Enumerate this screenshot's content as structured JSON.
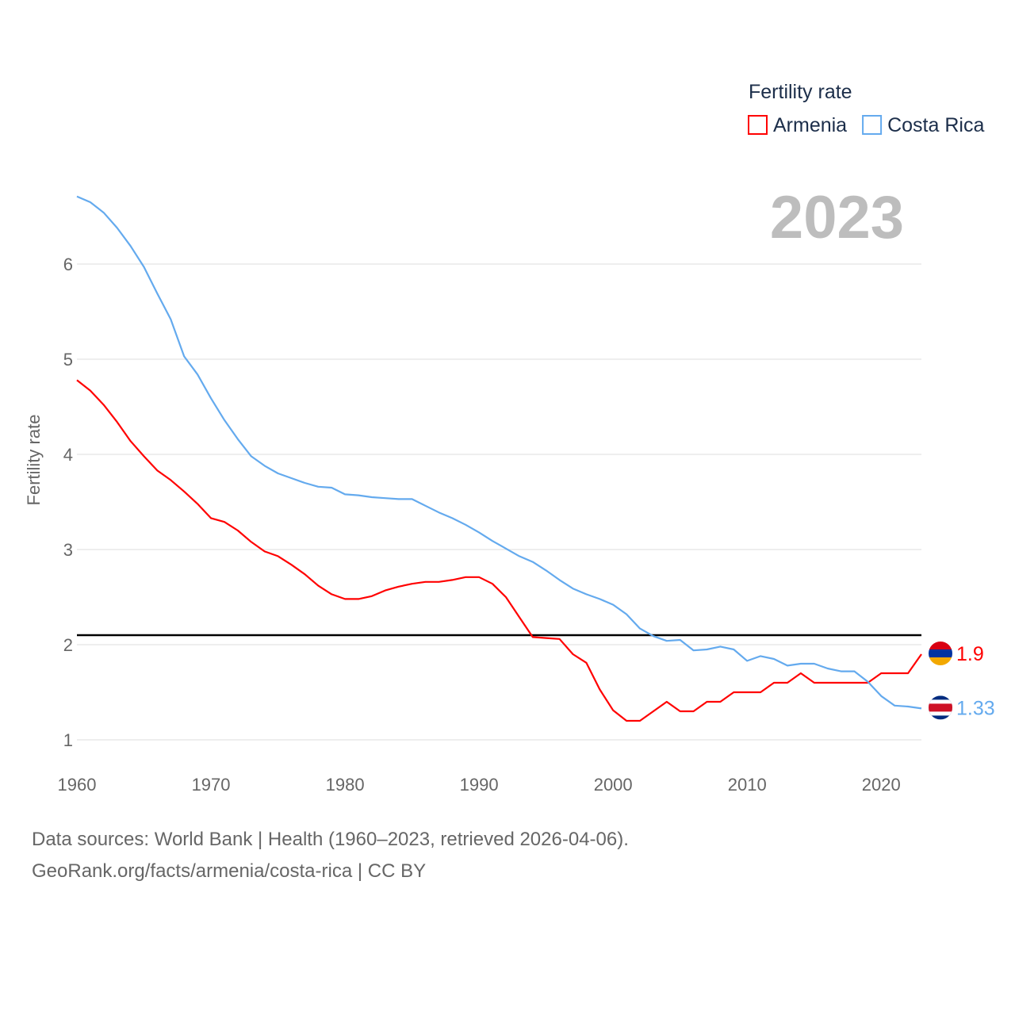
{
  "chart_data": {
    "type": "line",
    "title": "Fertility rate",
    "ylabel": "Fertility rate",
    "xlabel": "",
    "year_label": "2023",
    "xlim": [
      1960,
      2023
    ],
    "ylim": [
      0.8,
      6.8
    ],
    "x_ticks": [
      1960,
      1970,
      1980,
      1990,
      2000,
      2010,
      2020
    ],
    "y_ticks": [
      1,
      2,
      3,
      4,
      5,
      6
    ],
    "grid": true,
    "legend_position": "top-right",
    "reference_line": 2.1,
    "x": [
      1960,
      1961,
      1962,
      1963,
      1964,
      1965,
      1966,
      1967,
      1968,
      1969,
      1970,
      1971,
      1972,
      1973,
      1974,
      1975,
      1976,
      1977,
      1978,
      1979,
      1980,
      1981,
      1982,
      1983,
      1984,
      1985,
      1986,
      1987,
      1988,
      1989,
      1990,
      1991,
      1992,
      1993,
      1994,
      1995,
      1996,
      1997,
      1998,
      1999,
      2000,
      2001,
      2002,
      2003,
      2004,
      2005,
      2006,
      2007,
      2008,
      2009,
      2010,
      2011,
      2012,
      2013,
      2014,
      2015,
      2016,
      2017,
      2018,
      2019,
      2020,
      2021,
      2022,
      2023
    ],
    "series": [
      {
        "name": "Armenia",
        "color": "#ff0000",
        "end_label": "1.9",
        "flag": "armenia",
        "values": [
          4.78,
          4.67,
          4.52,
          4.34,
          4.14,
          3.98,
          3.83,
          3.73,
          3.61,
          3.48,
          3.33,
          3.29,
          3.2,
          3.08,
          2.98,
          2.93,
          2.84,
          2.74,
          2.62,
          2.53,
          2.48,
          2.48,
          2.51,
          2.57,
          2.61,
          2.64,
          2.66,
          2.66,
          2.68,
          2.71,
          2.71,
          2.64,
          2.5,
          2.29,
          2.08,
          2.07,
          2.06,
          1.9,
          1.81,
          1.53,
          1.31,
          1.2,
          1.2,
          1.3,
          1.4,
          1.3,
          1.3,
          1.4,
          1.4,
          1.5,
          1.5,
          1.5,
          1.6,
          1.6,
          1.7,
          1.6,
          1.6,
          1.6,
          1.6,
          1.6,
          1.7,
          1.7,
          1.7,
          1.9
        ]
      },
      {
        "name": "Costa Rica",
        "color": "#64aaee",
        "end_label": "1.33",
        "flag": "costa-rica",
        "values": [
          6.71,
          6.65,
          6.54,
          6.38,
          6.19,
          5.97,
          5.69,
          5.42,
          5.03,
          4.84,
          4.59,
          4.36,
          4.16,
          3.98,
          3.88,
          3.8,
          3.75,
          3.7,
          3.66,
          3.65,
          3.58,
          3.57,
          3.55,
          3.54,
          3.53,
          3.53,
          3.46,
          3.39,
          3.33,
          3.26,
          3.18,
          3.09,
          3.01,
          2.93,
          2.87,
          2.78,
          2.68,
          2.59,
          2.53,
          2.48,
          2.42,
          2.32,
          2.17,
          2.09,
          2.04,
          2.05,
          1.94,
          1.95,
          1.98,
          1.95,
          1.83,
          1.88,
          1.85,
          1.78,
          1.8,
          1.8,
          1.75,
          1.72,
          1.72,
          1.61,
          1.46,
          1.36,
          1.35,
          1.33
        ]
      }
    ]
  },
  "footer": {
    "line1": "Data sources: World Bank | Health (1960–2023, retrieved 2026-04-06).",
    "line2": "GeoRank.org/facts/armenia/costa-rica | CC BY"
  }
}
